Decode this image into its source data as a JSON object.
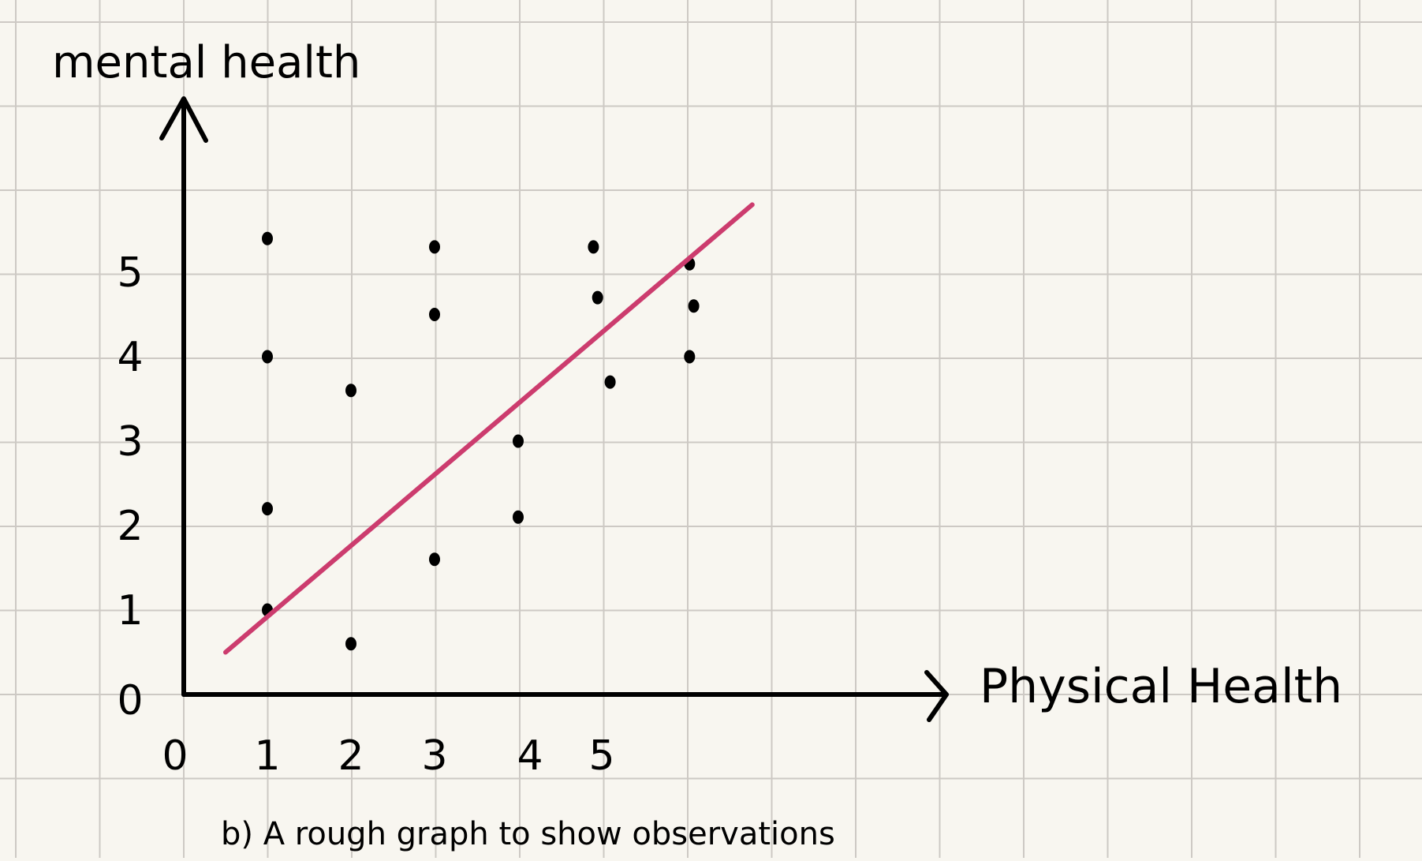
{
  "colors": {
    "paper": "#f8f6f0",
    "grid": "#cdc9c4",
    "ink": "#000000",
    "trend": "#cc3c6e"
  },
  "chart_data": {
    "type": "scatter",
    "title": "",
    "caption": "b) A rough graph to show observations",
    "xlabel": "Physical Health",
    "ylabel": "mental health",
    "x_ticks": [
      "0",
      "1",
      "2",
      "3",
      "4",
      "5"
    ],
    "y_ticks": [
      "0",
      "1",
      "2",
      "3",
      "4",
      "5"
    ],
    "xlim": [
      0,
      9
    ],
    "ylim": [
      0,
      5.6
    ],
    "grid": true,
    "legend": "none",
    "points": [
      {
        "x": 1.0,
        "y": 5.4
      },
      {
        "x": 1.0,
        "y": 4.0
      },
      {
        "x": 1.0,
        "y": 2.2
      },
      {
        "x": 1.0,
        "y": 1.0
      },
      {
        "x": 2.0,
        "y": 3.6
      },
      {
        "x": 2.0,
        "y": 0.6
      },
      {
        "x": 3.0,
        "y": 5.3
      },
      {
        "x": 3.0,
        "y": 4.5
      },
      {
        "x": 3.0,
        "y": 1.6
      },
      {
        "x": 4.0,
        "y": 3.0
      },
      {
        "x": 4.0,
        "y": 2.1
      },
      {
        "x": 4.9,
        "y": 5.3
      },
      {
        "x": 4.95,
        "y": 4.7
      },
      {
        "x": 5.1,
        "y": 3.7
      },
      {
        "x": 6.05,
        "y": 5.1
      },
      {
        "x": 6.1,
        "y": 4.6
      },
      {
        "x": 6.05,
        "y": 4.0
      }
    ],
    "trend_line": {
      "x": [
        0.5,
        6.8
      ],
      "y": [
        0.5,
        5.8
      ]
    }
  }
}
